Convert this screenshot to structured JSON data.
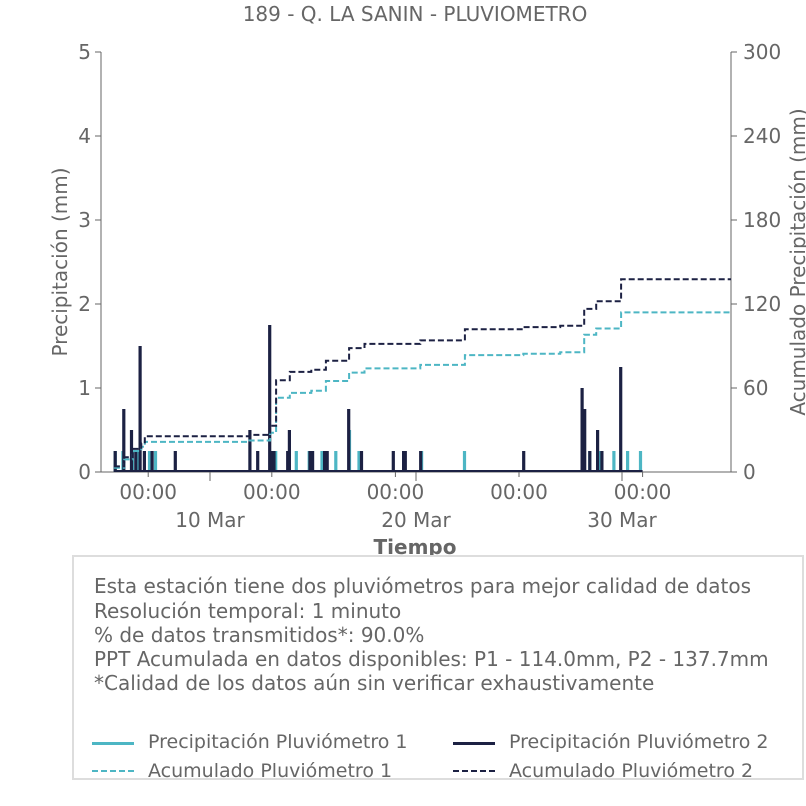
{
  "chart_data": {
    "type": "bar",
    "title": "189 - Q. LA SANIN - PLUVIOMETRO",
    "xlabel": "Tiempo",
    "ylabel": "Precipitación (mm)",
    "y2label": "Acumulado Precipitación (mm)",
    "ylim": [
      0,
      5
    ],
    "y2lim": [
      0,
      300
    ],
    "xlim": [
      "2024-03-04T17:00",
      "2024-04-04T07:00"
    ],
    "yticks": [
      "0",
      "1",
      "2",
      "3",
      "4",
      "5"
    ],
    "y2ticks": [
      "0",
      "60",
      "120",
      "180",
      "240",
      "300"
    ],
    "xticks": [
      {
        "x": "2024-03-07T00:00",
        "label": "00:00"
      },
      {
        "x": "2024-03-13T00:00",
        "label": "00:00"
      },
      {
        "x": "2024-03-19T00:00",
        "label": "00:00"
      },
      {
        "x": "2024-03-25T00:00",
        "label": "00:00"
      },
      {
        "x": "2024-03-31T00:00",
        "label": "00:00"
      }
    ],
    "xmajor": [
      {
        "x": "2024-03-10T00:00",
        "label": "10 Mar"
      },
      {
        "x": "2024-03-20T00:00",
        "label": "20 Mar"
      },
      {
        "x": "2024-03-30T00:00",
        "label": "30 Mar"
      }
    ],
    "colors": {
      "p1": "#4db6c4",
      "p2": "#1c2143",
      "axis": "#666666"
    },
    "series": [
      {
        "name": "Precipitación Pluviómetro 1",
        "kind": "bar",
        "color": "#4db6c4",
        "x": [
          "2024-03-05T10:00",
          "2024-03-05T19:00",
          "2024-03-06T06:00",
          "2024-03-06T13:00",
          "2024-03-07T02:00",
          "2024-03-07T09:00",
          "2024-03-13T05:00",
          "2024-03-14T05:00",
          "2024-03-14T20:00",
          "2024-03-15T11:00",
          "2024-03-16T03:00",
          "2024-03-16T19:00",
          "2024-03-17T06:00",
          "2024-03-20T07:00",
          "2024-03-22T09:00",
          "2024-03-28T04:00",
          "2024-03-28T11:00",
          "2024-03-28T23:00",
          "2024-03-29T15:00",
          "2024-03-30T07:00",
          "2024-03-30T22:00"
        ],
        "values": [
          0.25,
          0.25,
          0.25,
          0.25,
          0.25,
          0.25,
          0.25,
          0.25,
          0.25,
          0.25,
          0.25,
          0.5,
          0.25,
          0.25,
          0.25,
          0.25,
          0.25,
          0.25,
          0.25,
          0.25,
          0.25
        ]
      },
      {
        "name": "Precipitación Pluviómetro 2",
        "kind": "bar",
        "color": "#1c2143",
        "x": [
          "2024-03-05T10:00",
          "2024-03-05T20:00",
          "2024-03-06T05:00",
          "2024-03-06T10:00",
          "2024-03-06T15:00",
          "2024-03-06T20:00",
          "2024-03-07T05:00",
          "2024-03-08T08:00",
          "2024-03-11T23:00",
          "2024-03-12T08:00",
          "2024-03-12T22:00",
          "2024-03-13T01:00",
          "2024-03-13T03:00",
          "2024-03-13T19:00",
          "2024-03-13T21:00",
          "2024-03-14T21:00",
          "2024-03-15T00:00",
          "2024-03-15T14:00",
          "2024-03-15T17:00",
          "2024-03-16T18:00",
          "2024-03-17T09:00",
          "2024-03-18T22:00",
          "2024-03-19T10:00",
          "2024-03-19T12:00",
          "2024-03-20T06:00",
          "2024-03-25T06:00",
          "2024-03-28T02:00",
          "2024-03-28T05:00",
          "2024-03-28T11:00",
          "2024-03-28T20:00",
          "2024-03-29T01:00",
          "2024-03-29T23:00"
        ],
        "values": [
          0.25,
          0.75,
          0.5,
          0.25,
          1.5,
          0.25,
          0.25,
          0.25,
          0.5,
          0.25,
          1.75,
          0.25,
          0.25,
          0.25,
          0.5,
          0.25,
          0.25,
          0.25,
          0.25,
          0.75,
          0.25,
          0.25,
          0.25,
          0.25,
          0.25,
          0.25,
          1.0,
          0.75,
          0.25,
          0.5,
          0.25,
          1.25
        ]
      },
      {
        "name": "Acumulado Pluviómetro 1",
        "kind": "step",
        "axis": "right",
        "color": "#4db6c4",
        "x": [
          "2024-03-05T08:00",
          "2024-03-05T20:00",
          "2024-03-06T06:00",
          "2024-03-06T16:00",
          "2024-03-06T20:00",
          "2024-03-11T22:00",
          "2024-03-12T22:00",
          "2024-03-13T05:00",
          "2024-03-13T21:00",
          "2024-03-14T22:00",
          "2024-03-15T15:00",
          "2024-03-16T18:00",
          "2024-03-17T12:00",
          "2024-03-20T05:00",
          "2024-03-22T09:00",
          "2024-03-25T05:00",
          "2024-03-27T00:00",
          "2024-03-28T04:00",
          "2024-03-28T18:00",
          "2024-03-29T23:00",
          "2024-04-04T07:00"
        ],
        "values": [
          3,
          9,
          15,
          18,
          21.5,
          22.5,
          28,
          53,
          56.5,
          58,
          65,
          71,
          74,
          76.5,
          83.5,
          84.5,
          85.5,
          98,
          102.5,
          114,
          114
        ]
      },
      {
        "name": "Acumulado Pluviómetro 2",
        "kind": "step",
        "axis": "right",
        "color": "#1c2143",
        "x": [
          "2024-03-05T08:00",
          "2024-03-05T20:00",
          "2024-03-06T06:00",
          "2024-03-06T16:00",
          "2024-03-06T20:00",
          "2024-03-11T22:00",
          "2024-03-12T22:00",
          "2024-03-13T05:00",
          "2024-03-13T21:00",
          "2024-03-14T22:00",
          "2024-03-15T15:00",
          "2024-03-16T18:00",
          "2024-03-17T12:00",
          "2024-03-20T05:00",
          "2024-03-22T09:00",
          "2024-03-25T05:00",
          "2024-03-27T00:00",
          "2024-03-28T04:00",
          "2024-03-28T18:00",
          "2024-03-29T23:00",
          "2024-04-04T07:00"
        ],
        "values": [
          4,
          10.5,
          16.5,
          20.5,
          25.5,
          26.5,
          33,
          65.5,
          71.5,
          73,
          79.5,
          88.5,
          91.5,
          94,
          102,
          103.5,
          104.5,
          116.5,
          122,
          137.7,
          137.7
        ]
      }
    ]
  },
  "info": {
    "line1": "Esta estación tiene dos pluviómetros para mejor calidad de datos",
    "line2": "Resolución temporal: 1 minuto",
    "line3": "% de datos transmitidos*: 90.0%",
    "line4": "PPT Acumulada en datos disponibles: P1 - 114.0mm, P2 - 137.7mm",
    "line5": "*Calidad de los datos aún sin verificar exhaustivamente"
  },
  "legend": {
    "p1_precip": "Precipitación Pluviómetro 1",
    "p2_precip": "Precipitación Pluviómetro 2",
    "p1_acum": "Acumulado Pluviómetro 1",
    "p2_acum": "Acumulado Pluviómetro 2"
  }
}
